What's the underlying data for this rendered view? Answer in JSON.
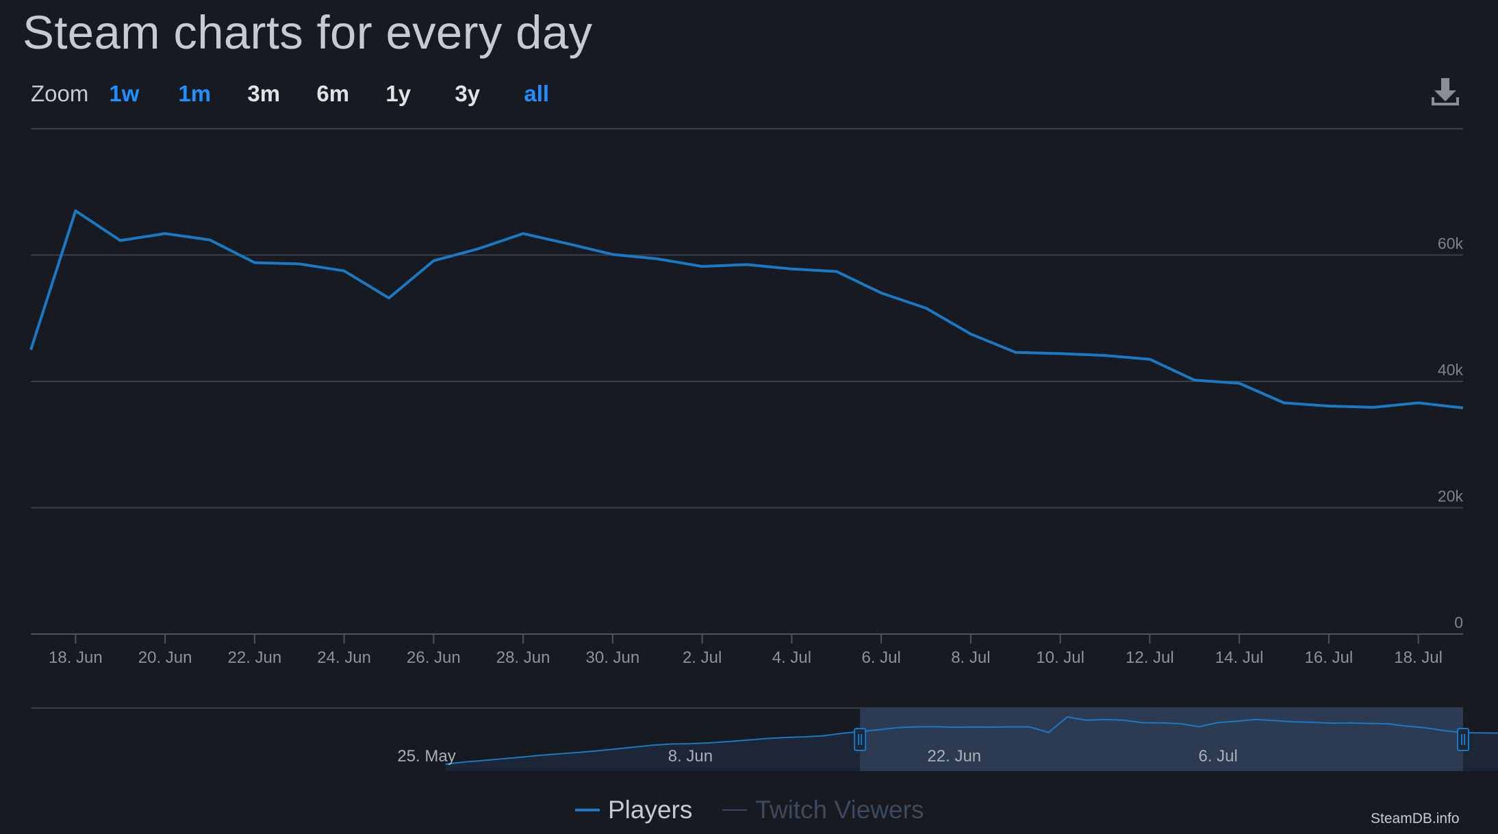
{
  "title": "Steam charts for every day",
  "zoom": {
    "label": "Zoom",
    "options": [
      "1w",
      "1m",
      "3m",
      "6m",
      "1y",
      "3y",
      "all"
    ],
    "active": [
      "1w",
      "1m",
      "all"
    ]
  },
  "download_icon": "download-icon",
  "colors": {
    "background": "#171a21",
    "players": "#1a79c4",
    "grid": "#3a3f46",
    "navigator_mask": "#2c3a52",
    "navigator_bg": "#1c2636",
    "twitch": "#3b4a5e"
  },
  "chart_data": {
    "type": "line",
    "title": "Steam charts for every day",
    "x_axis": {
      "type": "date",
      "range": [
        "2025-06-17",
        "2025-07-19"
      ],
      "tick_labels": [
        "18. Jun",
        "20. Jun",
        "22. Jun",
        "24. Jun",
        "26. Jun",
        "28. Jun",
        "30. Jun",
        "2. Jul",
        "4. Jul",
        "6. Jul",
        "8. Jul",
        "10. Jul",
        "12. Jul",
        "14. Jul",
        "16. Jul",
        "18. Jul"
      ],
      "tick_dates": [
        "2025-06-18",
        "2025-06-20",
        "2025-06-22",
        "2025-06-24",
        "2025-06-26",
        "2025-06-28",
        "2025-06-30",
        "2025-07-02",
        "2025-07-04",
        "2025-07-06",
        "2025-07-08",
        "2025-07-10",
        "2025-07-12",
        "2025-07-14",
        "2025-07-16",
        "2025-07-18"
      ]
    },
    "y_axis": {
      "range": [
        0,
        80000
      ],
      "ticks": [
        0,
        20000,
        40000,
        60000
      ],
      "tick_labels": [
        "0",
        "20k",
        "40k",
        "60k"
      ]
    },
    "grid": true,
    "series": [
      {
        "name": "Players",
        "x": [
          "2025-06-17",
          "2025-06-18",
          "2025-06-19",
          "2025-06-20",
          "2025-06-21",
          "2025-06-22",
          "2025-06-23",
          "2025-06-24",
          "2025-06-25",
          "2025-06-26",
          "2025-06-27",
          "2025-06-28",
          "2025-06-29",
          "2025-06-30",
          "2025-07-01",
          "2025-07-02",
          "2025-07-03",
          "2025-07-04",
          "2025-07-05",
          "2025-07-06",
          "2025-07-07",
          "2025-07-08",
          "2025-07-09",
          "2025-07-10",
          "2025-07-11",
          "2025-07-12",
          "2025-07-13",
          "2025-07-14",
          "2025-07-15",
          "2025-07-16",
          "2025-07-17",
          "2025-07-18",
          "2025-07-19"
        ],
        "values": [
          45000,
          67000,
          62300,
          63400,
          62400,
          58800,
          58600,
          57500,
          53200,
          59100,
          61000,
          63400,
          61800,
          60100,
          59400,
          58200,
          58500,
          57800,
          57400,
          54000,
          51600,
          47500,
          44600,
          44400,
          44100,
          43500,
          40200,
          39700,
          36600,
          36100,
          35900,
          36600,
          35800
        ]
      }
    ],
    "navigator": {
      "tick_labels": [
        "25. May",
        "8. Jun",
        "22. Jun",
        "6. Jul"
      ],
      "tick_dates": [
        "2025-05-25",
        "2025-06-08",
        "2025-06-22",
        "2025-07-06"
      ],
      "range": [
        "2025-05-04",
        "2025-07-19"
      ],
      "series_start": "2025-05-26",
      "selected_range": [
        "2025-06-17",
        "2025-07-19"
      ],
      "values": [
        0,
        3000,
        5200,
        7500,
        9800,
        12500,
        14600,
        16500,
        18800,
        21500,
        24200,
        27000,
        28700,
        29100,
        30300,
        32100,
        34200,
        36300,
        37800,
        38800,
        40100,
        43600,
        46300,
        48900,
        51900,
        53000,
        53200,
        52400,
        52800,
        52600,
        53000,
        52900,
        45000,
        67000,
        62300,
        63400,
        62400,
        58800,
        58600,
        57500,
        53200,
        59100,
        61000,
        63400,
        61800,
        60100,
        59400,
        58200,
        58500,
        57800,
        57400,
        54000,
        51600,
        47500,
        44600,
        44400,
        44100,
        43500,
        40200,
        39700,
        36600,
        36100,
        35900,
        36600,
        35800
      ]
    }
  },
  "legend": [
    {
      "name": "Players",
      "color": "#1a79c4",
      "enabled": true
    },
    {
      "name": "Twitch Viewers",
      "color": "#3b4a5e",
      "enabled": false
    }
  ],
  "credit": "SteamDB.info"
}
